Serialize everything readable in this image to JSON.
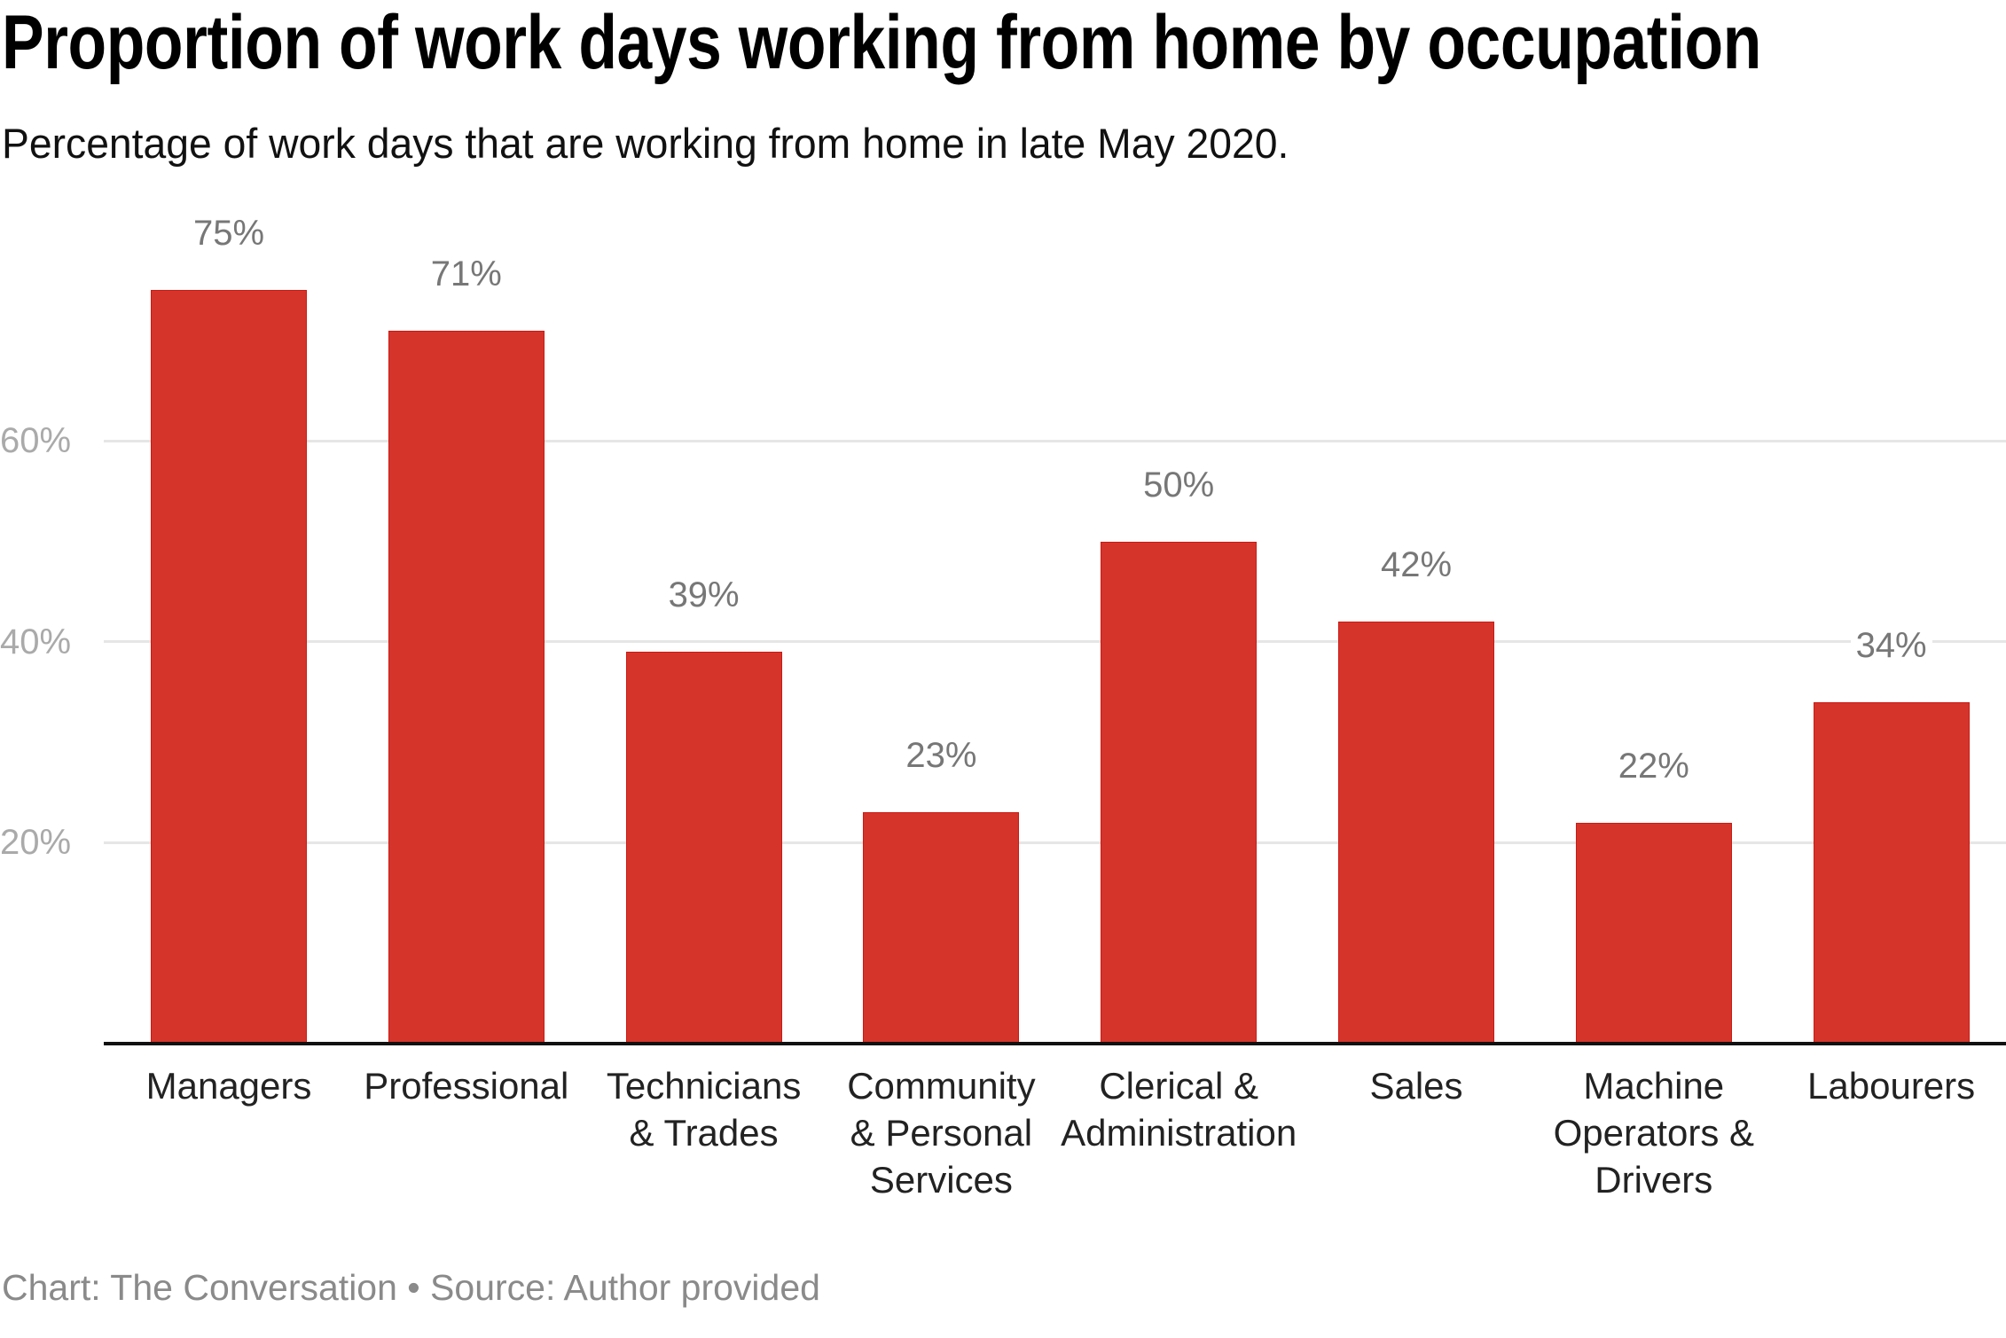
{
  "header": {
    "title": "Proportion of work days working from home by occupation",
    "subtitle": "Percentage of work days that are working from home in late May 2020."
  },
  "footer": {
    "text": "Chart: The Conversation • Source: Author provided"
  },
  "colors": {
    "bar": "#d5342b",
    "bar_border": "#cc1a12",
    "gridline": "#e6e6e6",
    "axis": "#111111",
    "value_label": "#777777",
    "tick_label": "#aaaaaa"
  },
  "chart_data": {
    "type": "bar",
    "title": "Proportion of work days working from home by occupation",
    "subtitle": "Percentage of work days that are working from home in late May 2020.",
    "xlabel": "",
    "ylabel": "",
    "categories": [
      "Managers",
      "Professional",
      "Technicians & Trades",
      "Community & Personal Services",
      "Clerical & Administration",
      "Sales",
      "Machine Operators & Drivers",
      "Labourers"
    ],
    "category_lines": [
      [
        "Managers"
      ],
      [
        "Professional"
      ],
      [
        "Technicians",
        "& Trades"
      ],
      [
        "Community",
        "& Personal",
        "Services"
      ],
      [
        "Clerical &",
        "Administration"
      ],
      [
        "Sales"
      ],
      [
        "Machine",
        "Operators &",
        "Drivers"
      ],
      [
        "Labourers"
      ]
    ],
    "values": [
      75,
      71,
      39,
      23,
      50,
      42,
      22,
      34
    ],
    "value_labels": [
      "75%",
      "71%",
      "39%",
      "23%",
      "50%",
      "42%",
      "22%",
      "34%"
    ],
    "yticks": [
      20,
      40,
      60
    ],
    "ytick_labels": [
      "20%",
      "40%",
      "60%"
    ],
    "ylim": [
      0,
      80
    ],
    "grid": true,
    "legend": null,
    "source": "Chart: The Conversation • Source: Author provided"
  }
}
